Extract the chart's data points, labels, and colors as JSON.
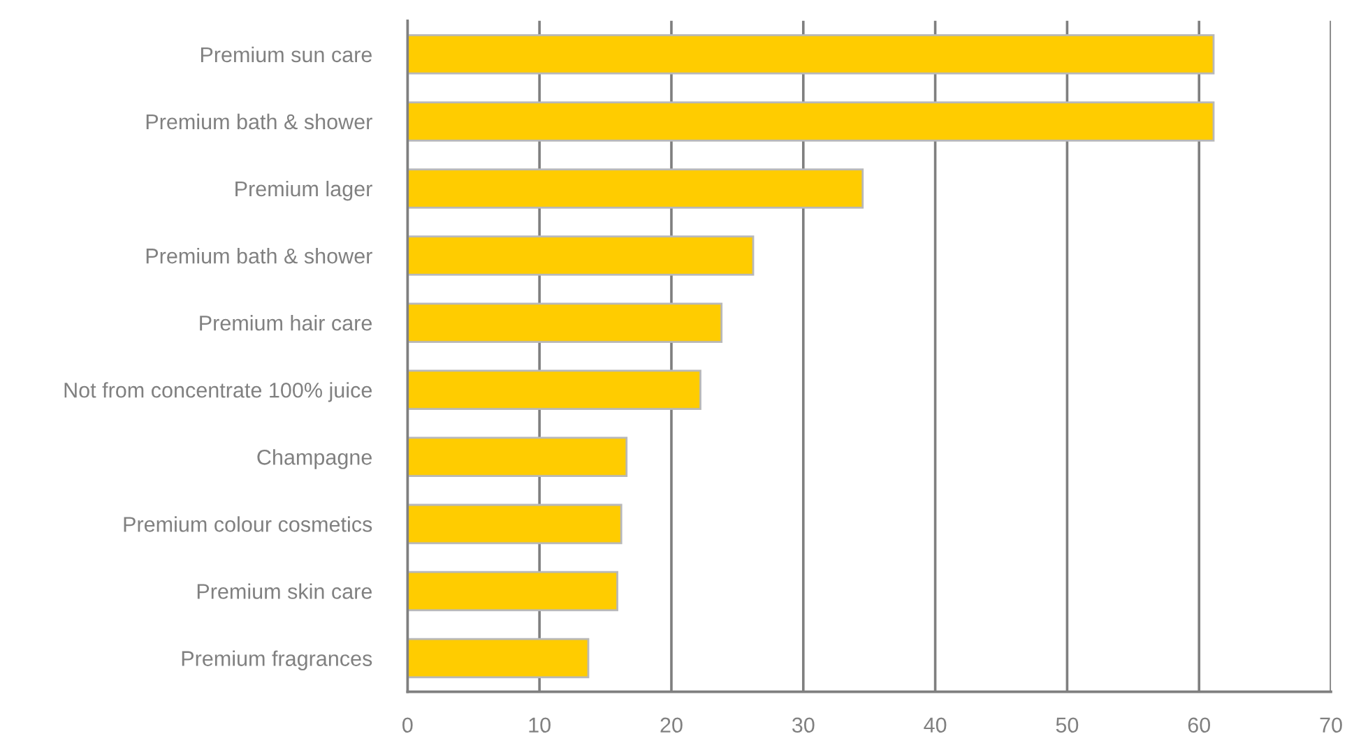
{
  "chart_data": {
    "type": "bar",
    "orientation": "horizontal",
    "categories": [
      "Premium sun care",
      "Premium bath & shower",
      "Premium lager",
      "Premium bath & shower",
      "Premium hair care",
      "Not from concentrate 100% juice",
      "Champagne",
      "Premium colour cosmetics",
      "Premium skin care",
      "Premium fragrances"
    ],
    "values": [
      61.1,
      61.1,
      34.5,
      26.2,
      23.8,
      22.2,
      16.6,
      16.2,
      15.9,
      13.7
    ],
    "color": "#ffcc00",
    "xlim": [
      0,
      70
    ],
    "xticks": [
      0,
      10,
      20,
      30,
      40,
      50,
      60,
      70
    ],
    "grid": "x"
  }
}
